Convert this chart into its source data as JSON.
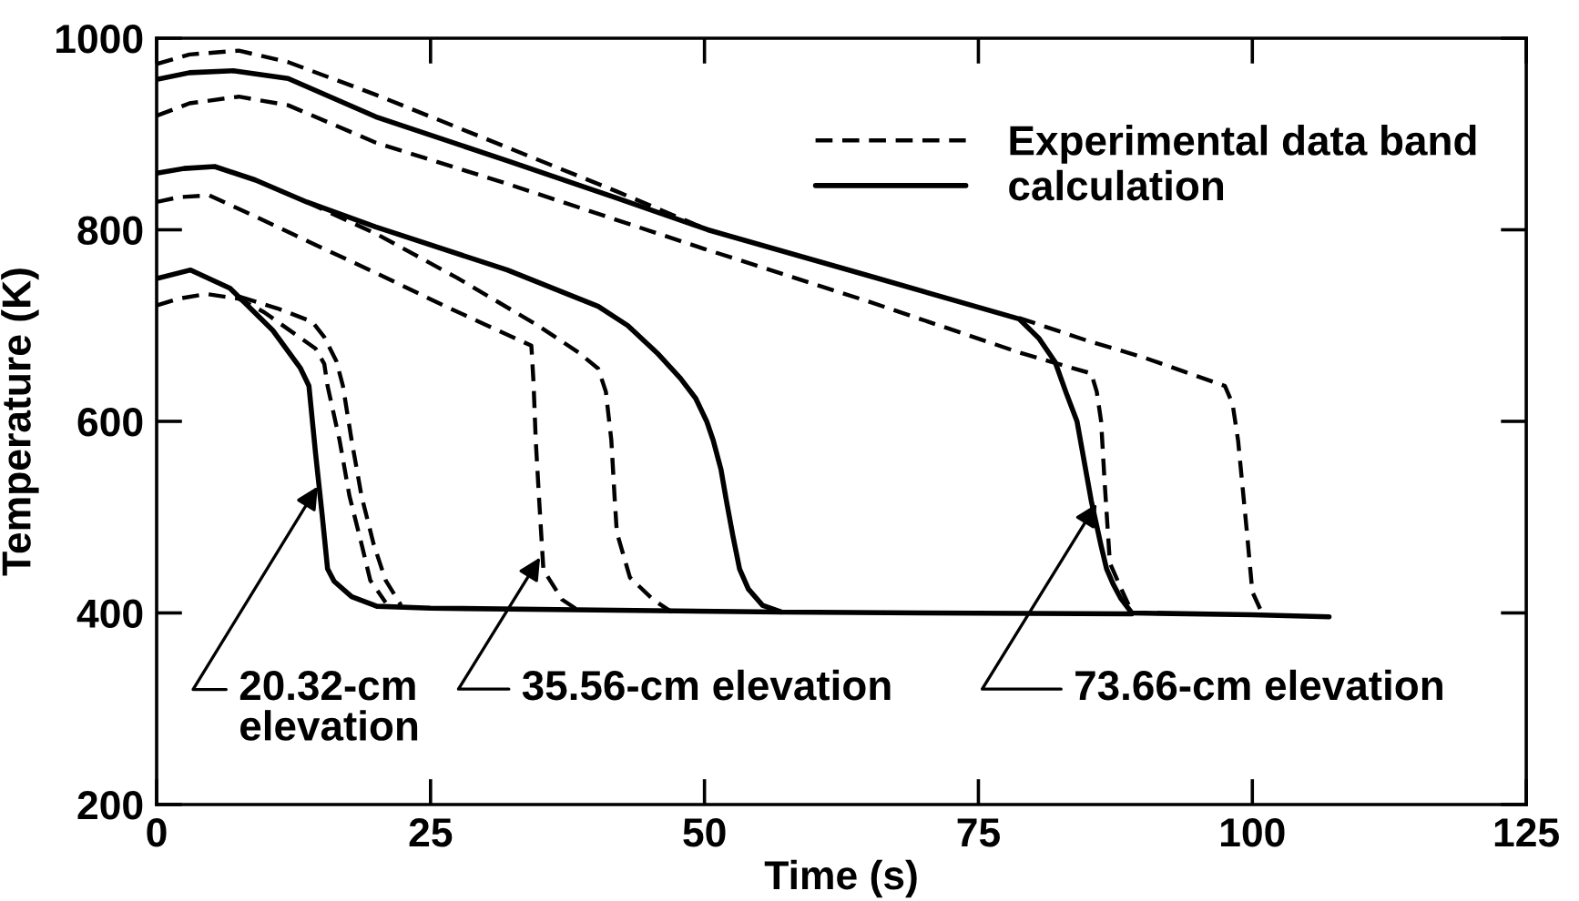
{
  "chart_data": {
    "type": "line",
    "xlabel": "Time (s)",
    "ylabel": "Temperature (K)",
    "xlim": [
      0,
      125
    ],
    "ylim": [
      200,
      1000
    ],
    "xticks": [
      0,
      25,
      50,
      75,
      100,
      125
    ],
    "yticks": [
      200,
      400,
      600,
      800,
      1000
    ],
    "legend": "top right",
    "series": [
      {
        "name": "Experimental data band",
        "color": "#000000",
        "line_style": "dashed",
        "x": [
          0,
          3,
          7.5,
          12,
          20,
          32,
          42,
          50.3,
          64,
          78.7,
          85,
          90,
          97.5,
          98.2,
          98.7,
          99.5,
          100,
          100.8
        ],
        "values": [
          973,
          983,
          987,
          975,
          941,
          886,
          840,
          800,
          null,
          708,
          684,
          667,
          637,
          618,
          580,
          485,
          422,
          402
        ]
      },
      {
        "name": "calculation",
        "color": "#000000",
        "line_style": "solid",
        "x": [
          0,
          3,
          7,
          12,
          20,
          32,
          42,
          50.3,
          65,
          78.7,
          80.5,
          82,
          83,
          84,
          85.3,
          86.2,
          86.7,
          87.3,
          88,
          89,
          100,
          107
        ],
        "values": [
          957,
          964,
          966,
          958,
          918,
          872,
          833,
          800,
          752,
          707,
          687,
          662,
          630,
          600,
          517,
          470,
          446,
          430,
          415,
          400,
          398,
          396
        ]
      },
      {
        "color": "#000000",
        "line_style": "dashed",
        "x": [
          0,
          3,
          7.5,
          12,
          20,
          32,
          50,
          65,
          78.7,
          85.3,
          85.8,
          86.2,
          86.5,
          87,
          88.2,
          89
        ],
        "values": [
          919,
          932,
          939,
          930,
          891,
          848,
          780,
          725,
          672,
          650,
          631,
          600,
          540,
          452,
          421,
          401
        ]
      },
      {
        "color": "#000000",
        "line_style": "solid",
        "x": [
          0,
          2.5,
          5.3,
          9,
          13.7,
          20,
          32,
          40.3,
          43,
          45.8,
          47.8,
          49.2,
          50.2,
          50.8,
          51.5,
          52,
          52.6,
          53.2,
          54,
          55.3,
          57,
          70,
          89
        ],
        "values": [
          859,
          864,
          866,
          852,
          829,
          803,
          758,
          720,
          700,
          670,
          645,
          624,
          600,
          580,
          550,
          517,
          480,
          446,
          425,
          408,
          401,
          400,
          399
        ]
      },
      {
        "color": "#000000",
        "line_style": "dashed",
        "x": [
          0,
          2,
          4.8,
          9,
          14,
          20,
          26,
          30,
          34.2,
          34.4,
          34.6,
          34.9,
          35.3,
          37,
          38.7
        ],
        "values": [
          829,
          834,
          836,
          814,
          787,
          755,
          722,
          701,
          679,
          640,
          580,
          520,
          445,
          414,
          401
        ]
      },
      {
        "color": "#000000",
        "line_style": "dashed",
        "x": [
          13.7,
          20,
          27.4,
          34.8,
          38.5,
          40.3,
          41,
          41.5,
          41.8,
          42,
          43.2,
          45.3,
          47
        ],
        "values": [
          829,
          796,
          750,
          700,
          672,
          655,
          631,
          580,
          520,
          484,
          437,
          414,
          401
        ]
      },
      {
        "color": "#000000",
        "line_style": "solid",
        "x": [
          0,
          3.1,
          6.7,
          10.6,
          13.1,
          13.9,
          14.5,
          15.1,
          15.6,
          16.2,
          17.8,
          20.1,
          25,
          40,
          57
        ],
        "values": [
          749,
          758,
          739,
          695,
          656,
          637,
          567,
          503,
          446,
          433,
          417,
          407,
          405,
          403,
          401
        ]
      },
      {
        "color": "#000000",
        "line_style": "dashed",
        "x": [
          7.6,
          11,
          14.2,
          15.3,
          16.4,
          17,
          17.8,
          18.7,
          19.8,
          20.9,
          22.3
        ],
        "values": [
          730,
          718,
          704,
          688,
          663,
          637,
          580,
          522,
          472,
          434,
          408
        ]
      },
      {
        "color": "#000000",
        "line_style": "dashed",
        "x": [
          0,
          2,
          4.5,
          7.5,
          9.8,
          14.5,
          15.3,
          15.6,
          16.7,
          17.6,
          18.7,
          19.5,
          20.9
        ],
        "values": [
          721,
          728,
          733,
          728,
          714,
          676,
          660,
          637,
          580,
          522,
          472,
          434,
          411
        ]
      }
    ],
    "annotations": [
      {
        "text": "20.32-cm\nelevation",
        "x": 14.7,
        "y": 532
      },
      {
        "text": "35.56-cm elevation",
        "x": 35,
        "y": 458
      },
      {
        "text": "73.66-cm elevation",
        "x": 85.8,
        "y": 514
      }
    ]
  }
}
